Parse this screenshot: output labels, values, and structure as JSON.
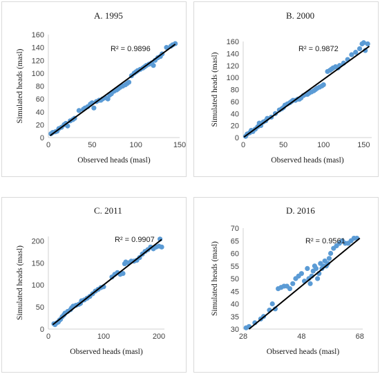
{
  "chart_data": [
    {
      "type": "scatter",
      "title": "A. 1995",
      "xlabel": "Observed heads (masl)",
      "ylabel": "Simulated heads (masl)",
      "xlim": [
        0,
        150
      ],
      "ylim": [
        0,
        160
      ],
      "xticks": [
        0,
        50,
        100,
        150
      ],
      "yticks": [
        0,
        20,
        40,
        60,
        80,
        100,
        120,
        140,
        160
      ],
      "annotation": "R² = 0.9896",
      "fit_line": {
        "x": [
          2,
          145
        ],
        "y": [
          3,
          145
        ]
      },
      "points": {
        "x": [
          3,
          5,
          8,
          10,
          12,
          15,
          18,
          20,
          22,
          25,
          28,
          30,
          35,
          40,
          42,
          45,
          48,
          50,
          52,
          55,
          58,
          60,
          62,
          65,
          68,
          70,
          72,
          75,
          78,
          80,
          82,
          85,
          88,
          90,
          92,
          95,
          98,
          100,
          102,
          105,
          108,
          110,
          112,
          115,
          118,
          120,
          122,
          125,
          128,
          130,
          135,
          140,
          142,
          145
        ],
        "y": [
          6,
          8,
          9,
          10,
          14,
          16,
          20,
          22,
          18,
          26,
          28,
          30,
          42,
          44,
          46,
          48,
          52,
          54,
          46,
          56,
          58,
          58,
          60,
          62,
          60,
          66,
          68,
          72,
          74,
          76,
          78,
          80,
          82,
          84,
          86,
          96,
          100,
          102,
          104,
          106,
          108,
          110,
          112,
          114,
          116,
          112,
          120,
          124,
          126,
          130,
          140,
          142,
          144,
          146
        ]
      }
    },
    {
      "type": "scatter",
      "title": "B. 2000",
      "xlabel": "Observed heads (masl)",
      "ylabel": "Simulated heads (masl)",
      "xlim": [
        0,
        160
      ],
      "ylim": [
        0,
        160
      ],
      "xticks": [
        0,
        50,
        100,
        150
      ],
      "yticks": [
        0,
        20,
        40,
        60,
        80,
        100,
        120,
        140,
        160
      ],
      "annotation": "R² = 0.9872",
      "fit_line": {
        "x": [
          1,
          157
        ],
        "y": [
          1,
          152
        ]
      },
      "points": {
        "x": [
          3,
          5,
          8,
          10,
          12,
          15,
          18,
          20,
          22,
          25,
          28,
          30,
          35,
          40,
          45,
          48,
          50,
          52,
          55,
          58,
          60,
          62,
          65,
          68,
          70,
          72,
          75,
          78,
          80,
          82,
          85,
          88,
          90,
          92,
          95,
          98,
          100,
          105,
          108,
          110,
          112,
          115,
          118,
          120,
          125,
          130,
          135,
          140,
          145,
          148,
          150,
          152,
          155
        ],
        "y": [
          2,
          6,
          8,
          12,
          10,
          14,
          18,
          24,
          20,
          26,
          28,
          32,
          34,
          40,
          46,
          48,
          50,
          54,
          56,
          58,
          60,
          62,
          62,
          64,
          64,
          66,
          70,
          72,
          72,
          74,
          76,
          78,
          80,
          82,
          84,
          86,
          88,
          110,
          112,
          114,
          116,
          118,
          116,
          120,
          124,
          130,
          138,
          142,
          148,
          156,
          158,
          145,
          156
        ]
      }
    },
    {
      "type": "scatter",
      "title": "C. 2011",
      "xlabel": "Observed heads (masl)",
      "ylabel": "Simulated heads (masl)",
      "xlim": [
        0,
        210
      ],
      "ylim": [
        0,
        210
      ],
      "xticks": [
        0,
        100,
        200
      ],
      "yticks": [
        0,
        50,
        100,
        150,
        200
      ],
      "annotation": "R² = 0.9907",
      "fit_line": {
        "x": [
          8,
          205
        ],
        "y": [
          10,
          203
        ]
      },
      "points": {
        "x": [
          10,
          12,
          15,
          18,
          20,
          22,
          25,
          28,
          30,
          35,
          40,
          42,
          45,
          50,
          55,
          58,
          60,
          65,
          70,
          75,
          80,
          85,
          90,
          95,
          100,
          115,
          120,
          125,
          130,
          135,
          138,
          140,
          145,
          150,
          155,
          160,
          165,
          170,
          175,
          180,
          185,
          190,
          195,
          200,
          202,
          205
        ],
        "y": [
          12,
          10,
          14,
          16,
          20,
          22,
          28,
          32,
          36,
          40,
          44,
          48,
          52,
          54,
          56,
          58,
          64,
          66,
          70,
          74,
          80,
          86,
          90,
          94,
          96,
          118,
          124,
          128,
          124,
          126,
          148,
          152,
          150,
          154,
          154,
          156,
          162,
          170,
          176,
          180,
          186,
          182,
          186,
          188,
          204,
          186
        ]
      }
    },
    {
      "type": "scatter",
      "title": "D. 2016",
      "xlabel": "Observed heads (masl)",
      "ylabel": "Simulated heads (masl)",
      "xlim": [
        28,
        69
      ],
      "ylim": [
        30,
        70
      ],
      "xticks": [
        28,
        48,
        68
      ],
      "yticks": [
        30,
        35,
        40,
        45,
        50,
        55,
        60,
        65,
        70
      ],
      "annotation": "R² = 0.9561",
      "fit_line": {
        "x": [
          30,
          68
        ],
        "y": [
          30,
          66
        ]
      },
      "points": {
        "x": [
          29,
          30,
          32,
          34,
          35,
          37,
          38,
          39,
          40,
          41,
          42,
          43,
          44,
          45,
          46,
          47,
          48,
          49,
          50,
          50.5,
          51,
          51.5,
          52,
          52.5,
          53,
          53.5,
          54,
          54.5,
          55,
          55.5,
          56,
          56.5,
          57,
          57.5,
          58,
          59,
          60,
          61,
          62,
          63,
          64,
          65,
          66,
          67
        ],
        "y": [
          30.5,
          31,
          32.5,
          34,
          35,
          37.5,
          40,
          38,
          46,
          46.5,
          47,
          47,
          46,
          48,
          50,
          51,
          52,
          49,
          54,
          50,
          48,
          51,
          53,
          55,
          54,
          50,
          52,
          56,
          54,
          55,
          57,
          55,
          56,
          58,
          60,
          62,
          63,
          64,
          65,
          64,
          64,
          65,
          66,
          66
        ]
      }
    }
  ]
}
